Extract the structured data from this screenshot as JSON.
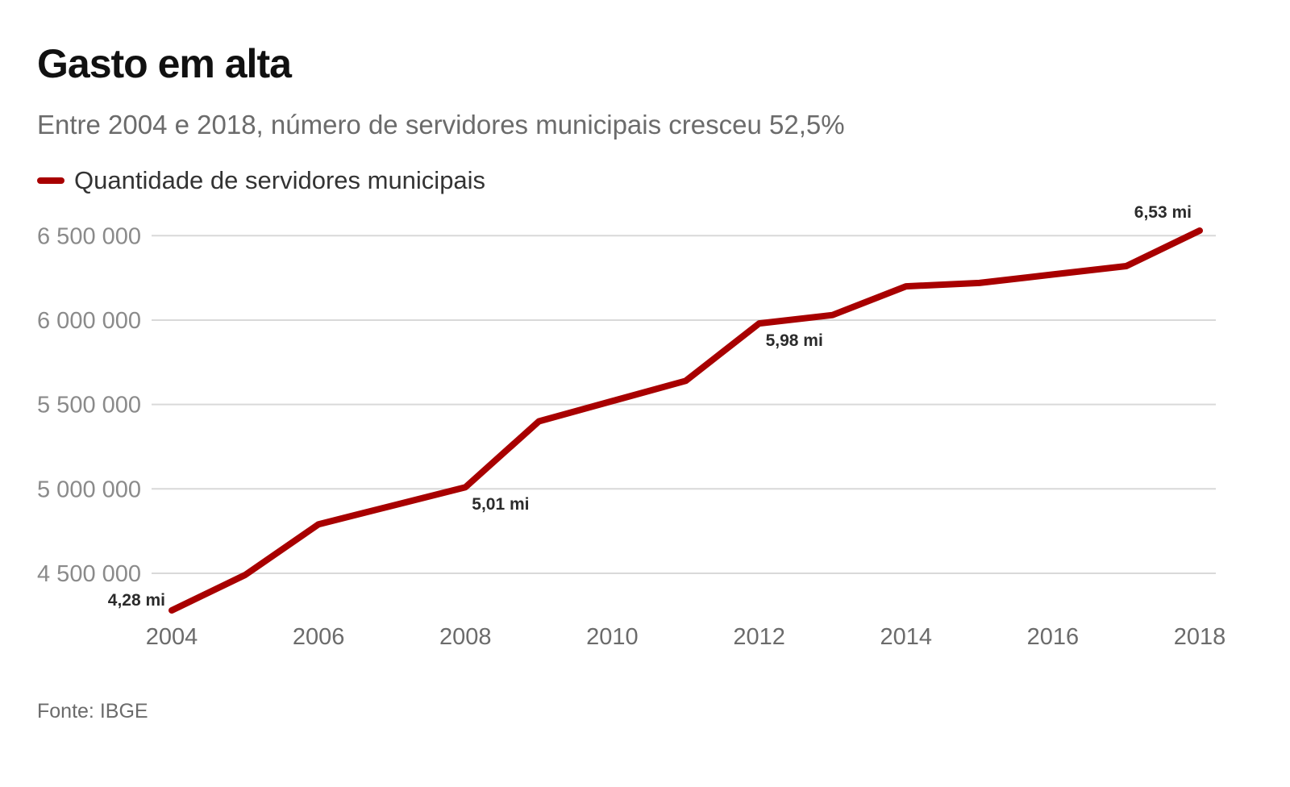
{
  "title": "Gasto em alta",
  "subtitle": "Entre 2004 e 2018, número de servidores municipais cresceu 52,5%",
  "source": "Fonte: IBGE",
  "colors": {
    "line": "#a80000",
    "grid": "#d9d9d9"
  },
  "chart_data": {
    "type": "line",
    "title": "Gasto em alta",
    "xlabel": "",
    "ylabel": "",
    "x": [
      2004,
      2005,
      2006,
      2007,
      2008,
      2009,
      2010,
      2011,
      2012,
      2013,
      2014,
      2015,
      2016,
      2017,
      2018
    ],
    "series": [
      {
        "name": "Quantidade de servidores municipais",
        "values": [
          4280000,
          4490000,
          4790000,
          4900000,
          5010000,
          5400000,
          5520000,
          5640000,
          5980000,
          6030000,
          6200000,
          6220000,
          6270000,
          6320000,
          6530000
        ]
      }
    ],
    "ylim": [
      4280000,
      6530000
    ],
    "xlim": [
      2004,
      2018
    ],
    "yticks": [
      4500000,
      5000000,
      5500000,
      6000000,
      6500000
    ],
    "ytick_labels": [
      "4 500 000",
      "5 000 000",
      "5 500 000",
      "6 000 000",
      "6 500 000"
    ],
    "xticks": [
      2004,
      2006,
      2008,
      2010,
      2012,
      2014,
      2016,
      2018
    ],
    "xtick_labels": [
      "2004",
      "2006",
      "2008",
      "2010",
      "2012",
      "2014",
      "2016",
      "2018"
    ],
    "annotations": [
      {
        "x": 2004,
        "y": 4280000,
        "text": "4,28 mi",
        "position": "left"
      },
      {
        "x": 2008,
        "y": 5010000,
        "text": "5,01 mi",
        "position": "below"
      },
      {
        "x": 2012,
        "y": 5980000,
        "text": "5,98 mi",
        "position": "below"
      },
      {
        "x": 2018,
        "y": 6530000,
        "text": "6,53 mi",
        "position": "above"
      }
    ],
    "grid": true,
    "legend": "top-left"
  }
}
